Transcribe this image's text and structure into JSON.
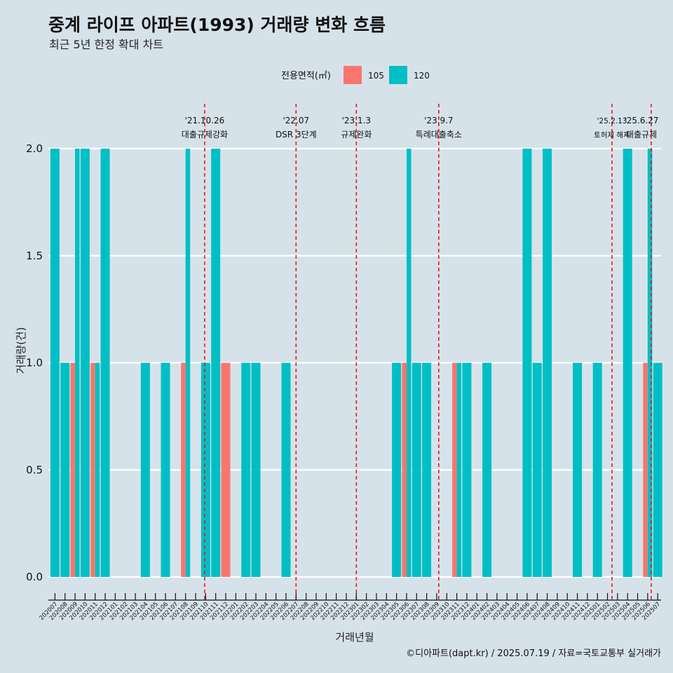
{
  "chart_data": {
    "type": "bar",
    "title": "중계 라이프 아파트(1993) 거래량 변화 흐름",
    "subtitle": "최근 5년 한정 확대 차트",
    "xlabel": "거래년월",
    "ylabel": "거래량(건)",
    "ylim": [
      0,
      2
    ],
    "yticks": [
      0,
      0.5,
      1,
      1.5,
      2
    ],
    "ytick_labels": [
      "0.0",
      "0.5",
      "1.0",
      "1.5",
      "2.0"
    ],
    "legend": {
      "title": "전용면적(㎡)",
      "position": "top",
      "entries": [
        {
          "name": "105",
          "color": "#F8766D"
        },
        {
          "name": "120",
          "color": "#00BFC4"
        }
      ]
    },
    "categories": [
      "202007",
      "202008",
      "202009",
      "202010",
      "202011",
      "202012",
      "202101",
      "202102",
      "202103",
      "202104",
      "202105",
      "202106",
      "202107",
      "202108",
      "202109",
      "202110",
      "202111",
      "202112",
      "202201",
      "202202",
      "202203",
      "202204",
      "202205",
      "202206",
      "202207",
      "202208",
      "202209",
      "202210",
      "202211",
      "202212",
      "202301",
      "202302",
      "202303",
      "202304",
      "202305",
      "202306",
      "202307",
      "202308",
      "202309",
      "202310",
      "202311",
      "202312",
      "202401",
      "202402",
      "202403",
      "202404",
      "202405",
      "202406",
      "202407",
      "202408",
      "202409",
      "202410",
      "202411",
      "202412",
      "202501",
      "202502",
      "202503",
      "202504",
      "202505",
      "202506",
      "202507"
    ],
    "bars": [
      {
        "month": "202007",
        "series": [
          {
            "name": "120",
            "value": 2
          }
        ]
      },
      {
        "month": "202008",
        "series": [
          {
            "name": "120",
            "value": 1
          }
        ]
      },
      {
        "month": "202009",
        "series": [
          {
            "name": "105",
            "value": 1
          },
          {
            "name": "120",
            "value": 2
          }
        ]
      },
      {
        "month": "202010",
        "series": [
          {
            "name": "120",
            "value": 2
          }
        ]
      },
      {
        "month": "202011",
        "series": [
          {
            "name": "105",
            "value": 1
          },
          {
            "name": "120",
            "value": 1
          }
        ]
      },
      {
        "month": "202012",
        "series": [
          {
            "name": "120",
            "value": 2
          }
        ]
      },
      {
        "month": "202104",
        "series": [
          {
            "name": "120",
            "value": 1
          }
        ]
      },
      {
        "month": "202106",
        "series": [
          {
            "name": "120",
            "value": 1
          }
        ]
      },
      {
        "month": "202108",
        "series": [
          {
            "name": "105",
            "value": 1
          },
          {
            "name": "120",
            "value": 2
          }
        ]
      },
      {
        "month": "202110",
        "series": [
          {
            "name": "120",
            "value": 1
          }
        ]
      },
      {
        "month": "202111",
        "series": [
          {
            "name": "120",
            "value": 2
          }
        ]
      },
      {
        "month": "202112",
        "series": [
          {
            "name": "105",
            "value": 1
          }
        ]
      },
      {
        "month": "202202",
        "series": [
          {
            "name": "120",
            "value": 1
          }
        ]
      },
      {
        "month": "202203",
        "series": [
          {
            "name": "120",
            "value": 1
          }
        ]
      },
      {
        "month": "202206",
        "series": [
          {
            "name": "120",
            "value": 1
          }
        ]
      },
      {
        "month": "202305",
        "series": [
          {
            "name": "120",
            "value": 1
          }
        ]
      },
      {
        "month": "202306",
        "series": [
          {
            "name": "105",
            "value": 1
          },
          {
            "name": "120",
            "value": 2
          }
        ]
      },
      {
        "month": "202307",
        "series": [
          {
            "name": "120",
            "value": 1
          }
        ]
      },
      {
        "month": "202308",
        "series": [
          {
            "name": "120",
            "value": 1
          }
        ]
      },
      {
        "month": "202311",
        "series": [
          {
            "name": "105",
            "value": 1
          },
          {
            "name": "120",
            "value": 1
          }
        ]
      },
      {
        "month": "202312",
        "series": [
          {
            "name": "120",
            "value": 1
          }
        ]
      },
      {
        "month": "202402",
        "series": [
          {
            "name": "120",
            "value": 1
          }
        ]
      },
      {
        "month": "202406",
        "series": [
          {
            "name": "120",
            "value": 2
          }
        ]
      },
      {
        "month": "202407",
        "series": [
          {
            "name": "120",
            "value": 1
          }
        ]
      },
      {
        "month": "202408",
        "series": [
          {
            "name": "120",
            "value": 2
          }
        ]
      },
      {
        "month": "202411",
        "series": [
          {
            "name": "120",
            "value": 1
          }
        ]
      },
      {
        "month": "202501",
        "series": [
          {
            "name": "120",
            "value": 1
          }
        ]
      },
      {
        "month": "202504",
        "series": [
          {
            "name": "120",
            "value": 2
          }
        ]
      },
      {
        "month": "202506",
        "series": [
          {
            "name": "105",
            "value": 1
          },
          {
            "name": "120",
            "value": 2
          }
        ]
      },
      {
        "month": "202507",
        "series": [
          {
            "name": "120",
            "value": 1
          }
        ]
      }
    ],
    "annotations": [
      {
        "month": "202110",
        "offset": -0.1,
        "line1": "'21.10.26",
        "line2": "대출규제강화",
        "small": false
      },
      {
        "month": "202207",
        "offset": 0,
        "line1": "'22.07",
        "line2": "DSR 3단계",
        "small": false
      },
      {
        "month": "202301",
        "offset": 0,
        "line1": "'23.1.3",
        "line2": "규제완화",
        "small": false
      },
      {
        "month": "202309",
        "offset": 0.2,
        "line1": "'23.9.7",
        "line2": "특례대출축소",
        "small": false
      },
      {
        "month": "202502",
        "offset": 0.45,
        "line1": "'25.2.13",
        "line2": "토허제 해제",
        "small": true
      },
      {
        "month": "202506",
        "offset": 0.35,
        "line1": "'25.6.27",
        "line2": "대출규제",
        "small": false
      }
    ],
    "caption": "©디아파트(dapt.kr) / 2025.07.19 / 자료=국토교통부 실거래가"
  },
  "colors": {
    "background": "#d6e2ea",
    "gridline": "#ffffff",
    "event_line": "#e8161b"
  }
}
